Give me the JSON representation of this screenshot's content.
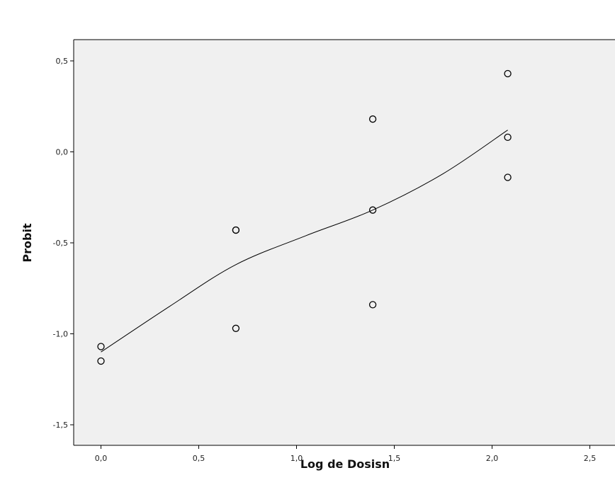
{
  "chart_data": {
    "type": "scatter",
    "title": "",
    "xlabel": "Log de Dosisn",
    "ylabel": "Probit",
    "xlim": [
      -0.14,
      2.6
    ],
    "ylim": [
      -1.62,
      0.63
    ],
    "x_ticks": [
      0.0,
      0.5,
      1.0,
      1.5,
      2.0,
      2.5
    ],
    "x_tick_labels": [
      "0,0",
      "0,5",
      "1,0",
      "1,5",
      "2,0",
      "2,5"
    ],
    "y_ticks": [
      0.5,
      0.0,
      -0.5,
      -1.0,
      -1.5
    ],
    "y_tick_labels": [
      "0,5",
      "0,0",
      "-0,5",
      "-1,0",
      "-1,5"
    ],
    "grid": false,
    "legend": "none",
    "points": {
      "x": [
        0.0,
        0.0,
        0.69,
        0.69,
        0.69,
        1.39,
        1.39,
        1.39,
        2.08,
        2.08,
        2.08
      ],
      "y": [
        -1.07,
        -1.15,
        -0.43,
        -0.43,
        -0.97,
        0.18,
        -0.32,
        -0.84,
        0.43,
        0.08,
        -0.14
      ]
    },
    "fit_line": {
      "x": [
        0.0,
        0.35,
        0.69,
        1.05,
        1.39,
        1.75,
        2.08
      ],
      "y": [
        -1.1,
        -0.85,
        -0.62,
        -0.46,
        -0.32,
        -0.12,
        0.12
      ]
    },
    "colors": {
      "plot_background": "#f0f0f0",
      "frame": "#000000",
      "marker": "#000000",
      "line": "#000000"
    }
  }
}
